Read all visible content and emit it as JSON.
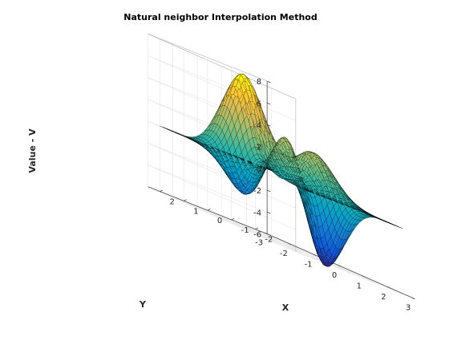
{
  "chart_data": {
    "type": "surface",
    "title": "Natural neighbor Interpolation Method",
    "xlabel": "X",
    "ylabel": "Y",
    "zlabel": "Value - V",
    "xlim": [
      -3,
      3
    ],
    "ylim": [
      -2.5,
      2.5
    ],
    "zlim": [
      -6,
      8
    ],
    "x_ticks": [
      "-3",
      "-2",
      "-1",
      "0",
      "1",
      "2",
      "3"
    ],
    "y_ticks": [
      "2",
      "1",
      "0",
      "-1",
      "-2"
    ],
    "z_ticks": [
      "8",
      "6",
      "4",
      "2",
      "0",
      "-2",
      "-4",
      "-6"
    ],
    "grid": true,
    "colormap": "parula",
    "colormap_colors": [
      "#352a87",
      "#0f5cdd",
      "#1481d6",
      "#06a4ca",
      "#2eb7a4",
      "#87bf77",
      "#d1bb59",
      "#fec832",
      "#f9fb0e"
    ],
    "edge_color": "#000000",
    "surface_function": "peaks(x, y)",
    "x_range": [
      -3,
      3
    ],
    "y_range": [
      -2,
      2
    ],
    "grid_points": 41,
    "z_peak": 8.1,
    "z_min": -6.5
  }
}
